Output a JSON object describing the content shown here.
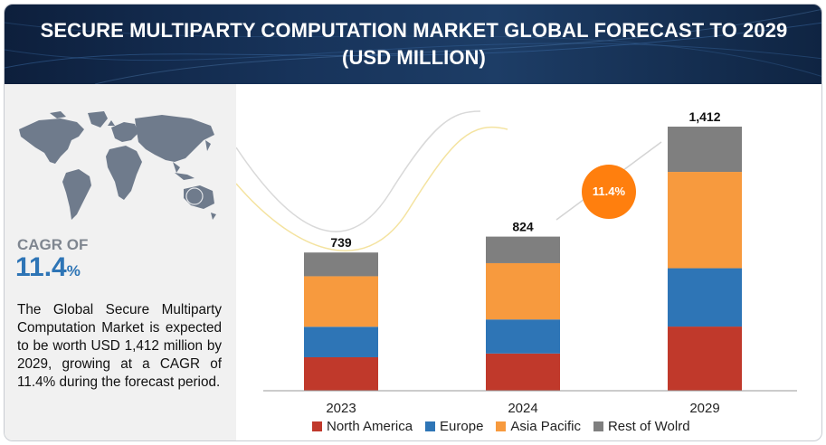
{
  "header": {
    "title_line1": "SECURE MULTIPARTY COMPUTATION MARKET GLOBAL FORECAST TO 2029",
    "title_line2": "(USD MILLION)"
  },
  "sidebar": {
    "cagr_label": "CAGR OF",
    "cagr_value": "11.4",
    "cagr_unit": "%",
    "description": "The Global Secure Multiparty Computation Market is expected to be worth USD 1,412 million by 2029, growing at a CAGR of 11.4% during the forecast period.",
    "map_icon": "world-map-icon"
  },
  "chart_data": {
    "type": "bar",
    "stacked": true,
    "categories": [
      "2023",
      "2024",
      "2029"
    ],
    "totals": [
      739,
      824,
      1412
    ],
    "total_labels": [
      "739",
      "824",
      "1,412"
    ],
    "series": [
      {
        "name": "North America",
        "color": "#c0392b",
        "values": [
          179,
          199,
          343
        ]
      },
      {
        "name": "Europe",
        "color": "#2e75b6",
        "values": [
          163,
          182,
          312
        ]
      },
      {
        "name": "Asia Pacific",
        "color": "#f79a3e",
        "values": [
          270,
          301,
          515
        ]
      },
      {
        "name": "Rest of Wolrd",
        "color": "#7f7f7f",
        "values": [
          127,
          142,
          242
        ]
      }
    ],
    "ylim": [
      0,
      1500
    ],
    "grid": false,
    "legend_position": "bottom",
    "annotation": {
      "text": "11.4%",
      "color": "#ff7f0e"
    }
  }
}
